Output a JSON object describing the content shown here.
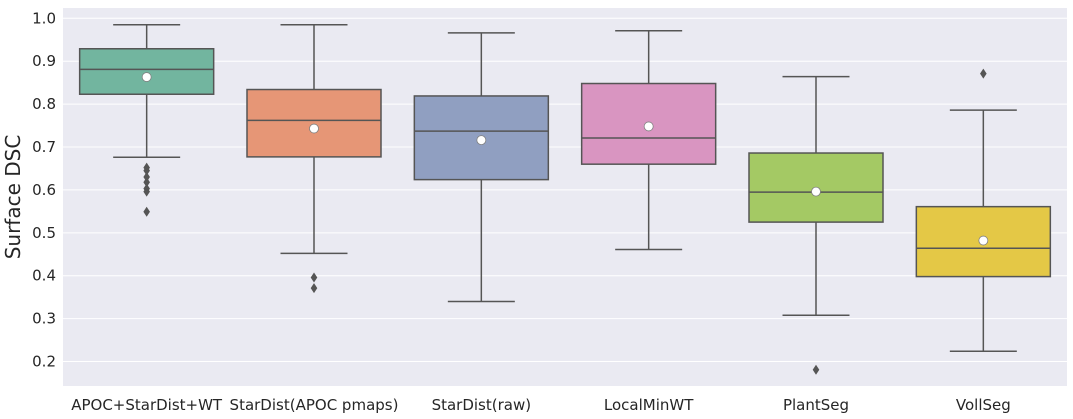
{
  "chart_data": {
    "type": "box",
    "title": "",
    "xlabel": "",
    "ylabel": "Surface DSC",
    "ylim": [
      0.143,
      1.024
    ],
    "yticks": [
      "0.2",
      "0.3",
      "0.4",
      "0.5",
      "0.6",
      "0.7",
      "0.8",
      "0.9",
      "1.0"
    ],
    "grid": true,
    "legend": "none",
    "categories": [
      "APOC+StarDist+WT",
      "StarDist(APOC pmaps)",
      "StarDist(raw)",
      "LocalMinWT",
      "PlantSeg",
      "VollSeg"
    ],
    "series": [
      {
        "whisker_low": 0.676,
        "q1": 0.823,
        "median": 0.881,
        "q3": 0.929,
        "whisker_high": 0.985,
        "mean": 0.863,
        "outliers": [
          0.652,
          0.645,
          0.63,
          0.618,
          0.603,
          0.596,
          0.549
        ]
      },
      {
        "whisker_low": 0.452,
        "q1": 0.677,
        "median": 0.762,
        "q3": 0.834,
        "whisker_high": 0.985,
        "mean": 0.743,
        "outliers": [
          0.396,
          0.371
        ]
      },
      {
        "whisker_low": 0.34,
        "q1": 0.624,
        "median": 0.737,
        "q3": 0.819,
        "whisker_high": 0.966,
        "mean": 0.716,
        "outliers": []
      },
      {
        "whisker_low": 0.461,
        "q1": 0.66,
        "median": 0.721,
        "q3": 0.848,
        "whisker_high": 0.971,
        "mean": 0.748,
        "outliers": []
      },
      {
        "whisker_low": 0.308,
        "q1": 0.525,
        "median": 0.595,
        "q3": 0.686,
        "whisker_high": 0.864,
        "mean": 0.596,
        "outliers": [
          0.181
        ]
      },
      {
        "whisker_low": 0.224,
        "q1": 0.398,
        "median": 0.464,
        "q3": 0.561,
        "whisker_high": 0.786,
        "mean": 0.482,
        "outliers": [
          0.871
        ]
      }
    ],
    "colors": [
      "#72b59f",
      "#e69676",
      "#909fc1",
      "#d995c1",
      "#a4c964",
      "#e4c846"
    ],
    "background": "#eaeaf2",
    "line_color": "#555555"
  }
}
